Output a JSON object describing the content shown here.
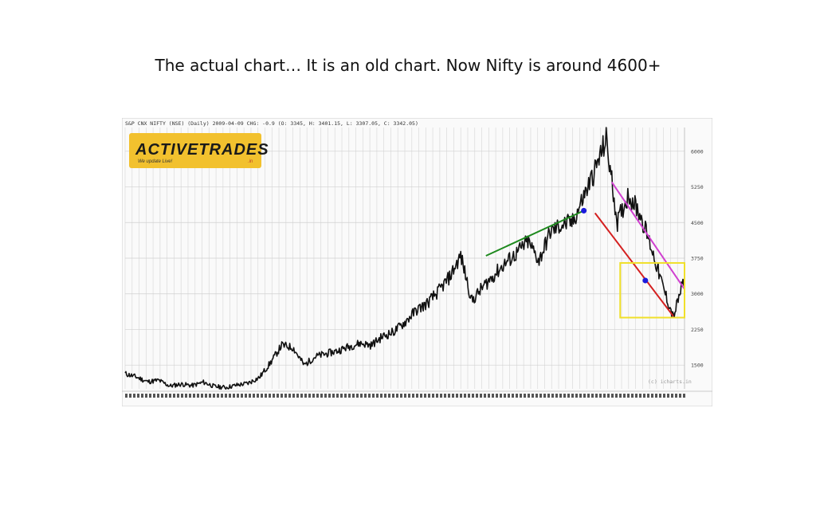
{
  "caption": "The actual chart… It is an old chart. Now Nifty is around 4600+",
  "chart_header": "S&P CNX NIFTY (NSE) (Daily) 2009-04-09 CHG: -0.9 (O: 3345, H: 3401.15, L: 3307.05, C: 3342.05)",
  "watermark": "(c) icharts.in",
  "logo": {
    "text": "ACTIVETRADES",
    "tagline": "We update Live!",
    "suffix": ".in",
    "bg_color": "#f2c12e",
    "text_color": "#1a1a1a"
  },
  "chart_data": {
    "type": "line",
    "title": "",
    "ylim": [
      1000,
      6500
    ],
    "yticks": [
      1500,
      2250,
      3000,
      3750,
      4500,
      5250,
      6000
    ],
    "ytick_labels": [
      "1500",
      "2250",
      "3000",
      "3750",
      "4500",
      "5250",
      "6000"
    ],
    "xlabels_note": "dense date tick row at bottom",
    "grid": true,
    "series": [
      {
        "color": "#111111",
        "x": [
          0,
          2,
          4,
          6,
          8,
          10,
          12,
          14,
          16,
          18,
          20,
          22,
          24,
          26,
          28,
          30,
          32,
          34,
          36,
          38,
          40,
          42,
          44,
          46,
          48,
          50,
          52,
          54,
          56,
          58,
          60,
          62,
          64,
          66,
          68,
          70,
          72,
          74,
          76,
          78,
          80,
          82,
          84,
          86,
          88,
          90,
          92,
          94,
          96,
          98,
          100
        ],
        "values": [
          1320,
          1250,
          1150,
          1180,
          1060,
          1100,
          1070,
          1140,
          1050,
          1030,
          1080,
          1120,
          1240,
          1550,
          1920,
          1870,
          1500,
          1680,
          1740,
          1800,
          1890,
          1960,
          1920,
          2100,
          2200,
          2400,
          2650,
          2800,
          3050,
          3350,
          3800,
          2850,
          3150,
          3400,
          3650,
          3850,
          4100,
          3700,
          4300,
          4450,
          4500,
          5050,
          5600,
          6250,
          4500,
          5100,
          4700,
          4000,
          3200,
          2500,
          3350
        ]
      }
    ],
    "annotations": [
      {
        "type": "trendline",
        "color": "#1e8a1e",
        "from": [
          64.5,
          3800
        ],
        "to": [
          82,
          4750
        ]
      },
      {
        "type": "trendline",
        "color": "#d42020",
        "from": [
          84,
          4700
        ],
        "to": [
          98,
          2530
        ]
      },
      {
        "type": "trendline",
        "color": "#d040d0",
        "from": [
          87,
          5350
        ],
        "to": [
          100,
          3100
        ]
      },
      {
        "type": "marker",
        "color": "#1a1adc",
        "at": [
          82,
          4750
        ]
      },
      {
        "type": "marker",
        "color": "#1a1adc",
        "at": [
          93,
          3280
        ]
      },
      {
        "type": "box",
        "color": "#f0e02a",
        "x": [
          88.5,
          100
        ],
        "y": [
          2500,
          3650
        ]
      }
    ]
  }
}
